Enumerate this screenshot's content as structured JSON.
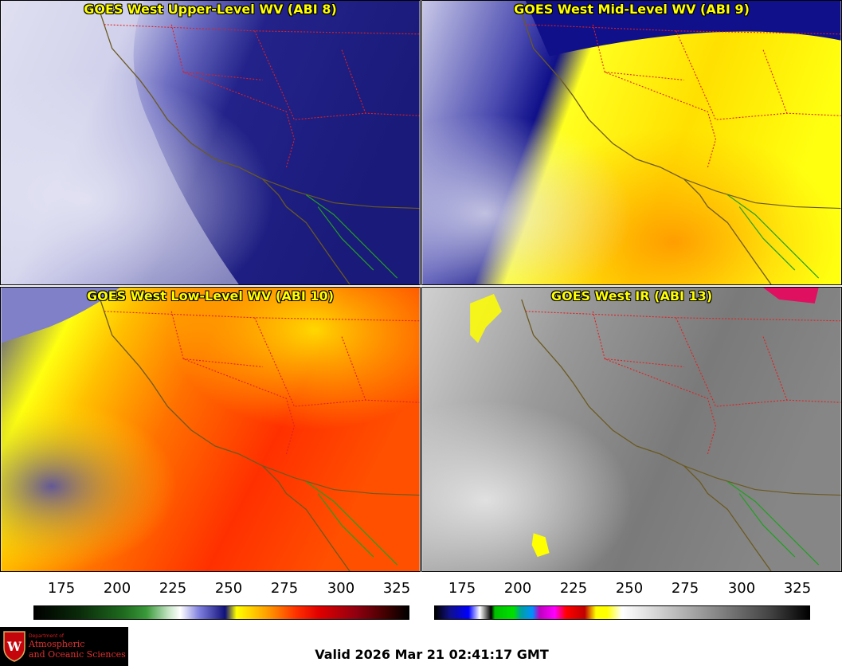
{
  "panels": [
    {
      "id": "upper",
      "title": "GOES West Upper-Level WV (ABI 8)"
    },
    {
      "id": "mid",
      "title": "GOES West Mid-Level WV (ABI 9)"
    },
    {
      "id": "low",
      "title": "GOES West Low-Level WV (ABI 10)"
    },
    {
      "id": "ir",
      "title": "GOES West IR (ABI 13)"
    }
  ],
  "colorbar_wv": {
    "ticks": [
      "175",
      "200",
      "225",
      "250",
      "275",
      "300",
      "325"
    ]
  },
  "colorbar_ir": {
    "ticks": [
      "175",
      "200",
      "225",
      "250",
      "275",
      "300",
      "325"
    ]
  },
  "logo": {
    "dept": "Department of",
    "line1": "Atmospheric",
    "line2": "and Oceanic Sciences",
    "icon": "uw-crest-icon"
  },
  "valid_time": "Valid 2026 Mar 21 02:41:17 GMT",
  "colors": {
    "title_text": "#ffff00",
    "state_border": "#e02020",
    "coastline": "#6b5a20",
    "mexico_coast": "#20a020"
  }
}
